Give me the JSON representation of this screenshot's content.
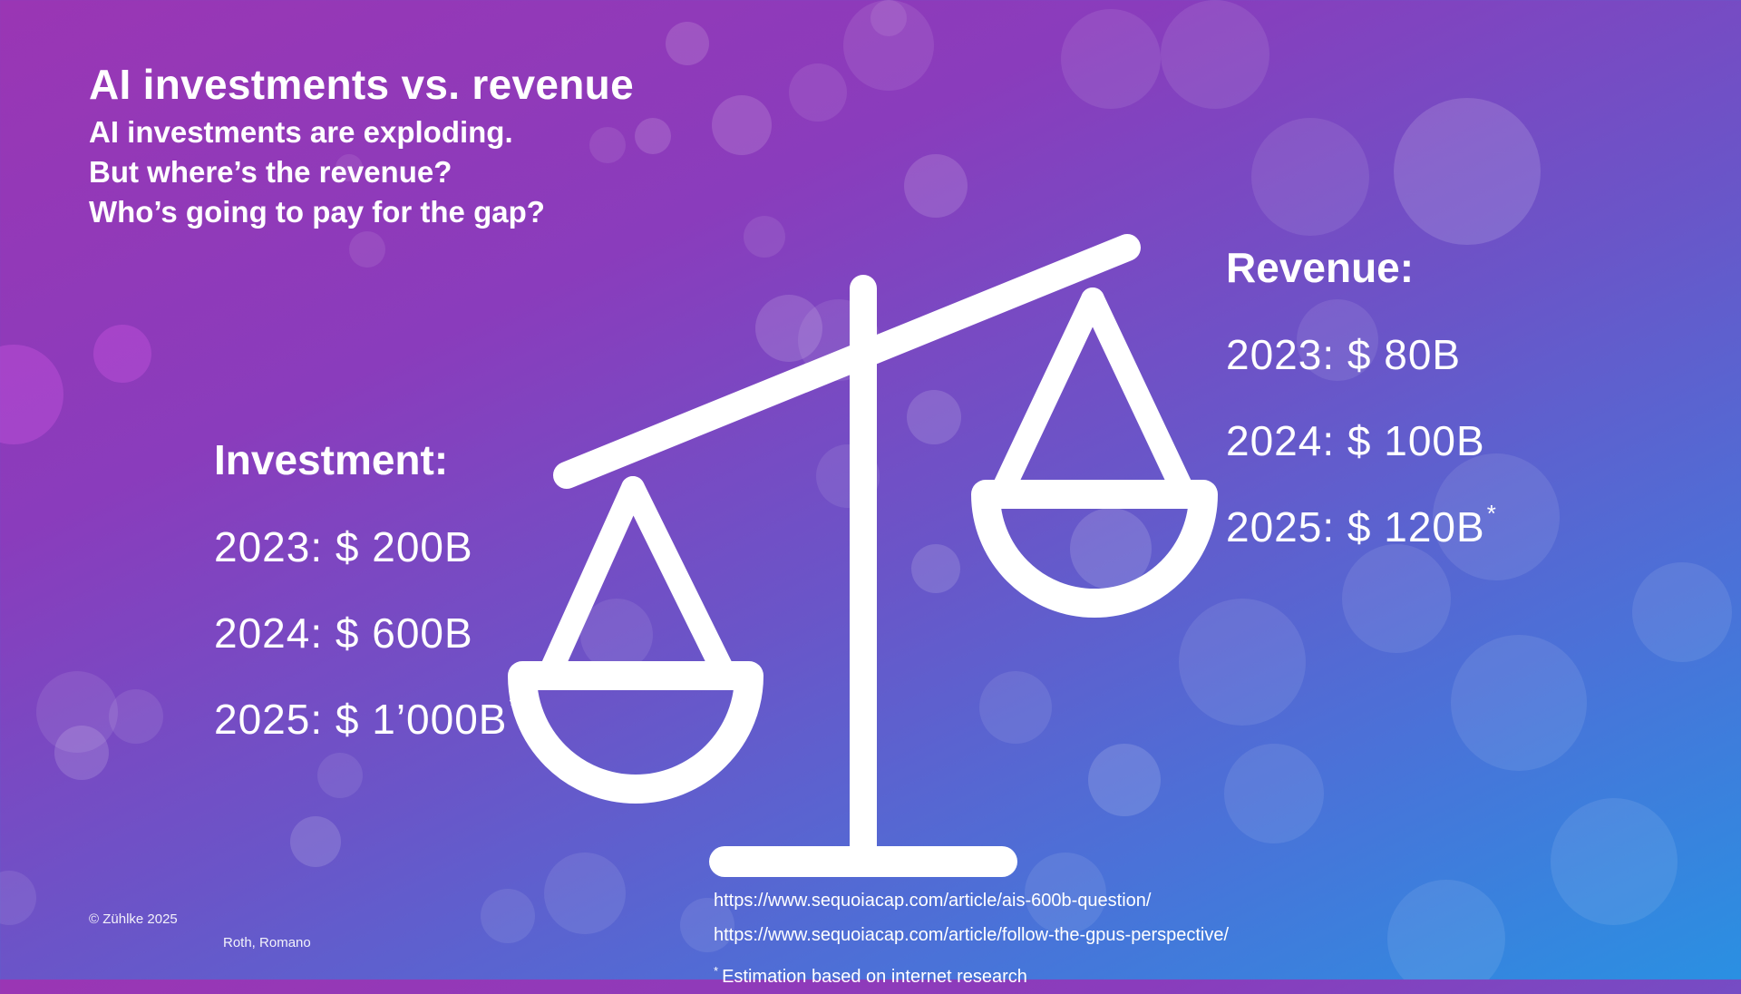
{
  "slide": {
    "title": "AI investments vs. revenue",
    "subtitle_lines": [
      "AI investments are exploding.",
      "But where’s the revenue?",
      "Who’s going to pay for the gap?"
    ]
  },
  "investment": {
    "heading": "Investment:",
    "rows": [
      {
        "text": "2023: $ 200B",
        "mark": ""
      },
      {
        "text": "2024: $ 600B",
        "mark": ""
      },
      {
        "text": "2025: $ 1’000B",
        "mark": "*"
      }
    ]
  },
  "revenue": {
    "heading": "Revenue:",
    "rows": [
      {
        "text": "2023: $ 80B",
        "mark": ""
      },
      {
        "text": "2024: $ 100B",
        "mark": ""
      },
      {
        "text": "2025: $ 120B",
        "mark": "*"
      }
    ]
  },
  "references": {
    "links": [
      "https://www.sequoiacap.com/article/ais-600b-question/",
      "https://www.sequoiacap.com/article/follow-the-gpus-perspective/"
    ],
    "note_mark": "*",
    "note_text": "Estimation based on internet research"
  },
  "footer": {
    "copyright": "© Zühlke  2025",
    "author": "Roth, Romano"
  },
  "icons": {
    "scale": "balance-scale-icon"
  },
  "colors": {
    "text": "#ffffff",
    "bg_top": "#9a36b4",
    "bg_bottom": "#2a90e2"
  }
}
